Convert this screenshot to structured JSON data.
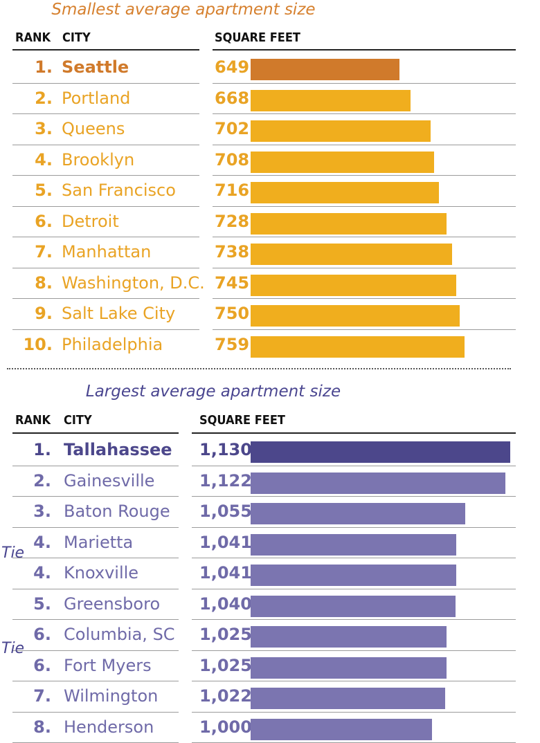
{
  "titles": {
    "smallest": "Smallest average apartment size",
    "largest": "Largest average apartment size"
  },
  "headers": {
    "rank": "RANK",
    "city": "CITY",
    "value": "SQUARE FEET"
  },
  "tie_label": "Tie",
  "colors": {
    "small_highlight": "#D07A2B",
    "small_bar": "#F0AE1E",
    "small_text": "#E9A324",
    "large_highlight": "#4C478B",
    "large_bar": "#7B75B0",
    "large_text": "#6F6AA8"
  },
  "chart_data": [
    {
      "type": "bar",
      "title": "Smallest average apartment size",
      "xlabel": "SQUARE FEET",
      "ylabel": "CITY",
      "categories": [
        "Seattle",
        "Portland",
        "Queens",
        "Brooklyn",
        "San Francisco",
        "Detroit",
        "Manhattan",
        "Washington, D.C.",
        "Salt Lake City",
        "Philadelphia"
      ],
      "ranks": [
        "1.",
        "2.",
        "3.",
        "4.",
        "5.",
        "6.",
        "7.",
        "8.",
        "9.",
        "10."
      ],
      "values": [
        649,
        668,
        702,
        708,
        716,
        728,
        738,
        745,
        750,
        759
      ],
      "value_labels": [
        "649",
        "668",
        "702",
        "708",
        "716",
        "728",
        "738",
        "745",
        "750",
        "759"
      ]
    },
    {
      "type": "bar",
      "title": "Largest average apartment size",
      "xlabel": "SQUARE FEET",
      "ylabel": "CITY",
      "categories": [
        "Tallahassee",
        "Gainesville",
        "Baton Rouge",
        "Marietta",
        "Knoxville",
        "Greensboro",
        "Columbia, SC",
        "Fort Myers",
        "Wilmington",
        "Henderson"
      ],
      "ranks": [
        "1.",
        "2.",
        "3.",
        "4.",
        "4.",
        "5.",
        "6.",
        "6.",
        "7.",
        "8."
      ],
      "values": [
        1130,
        1122,
        1055,
        1041,
        1041,
        1040,
        1025,
        1025,
        1022,
        1000
      ],
      "value_labels": [
        "1,130",
        "1,122",
        "1,055",
        "1,041",
        "1,041",
        "1,040",
        "1,025",
        "1,025",
        "1,022",
        "1,000"
      ]
    }
  ]
}
